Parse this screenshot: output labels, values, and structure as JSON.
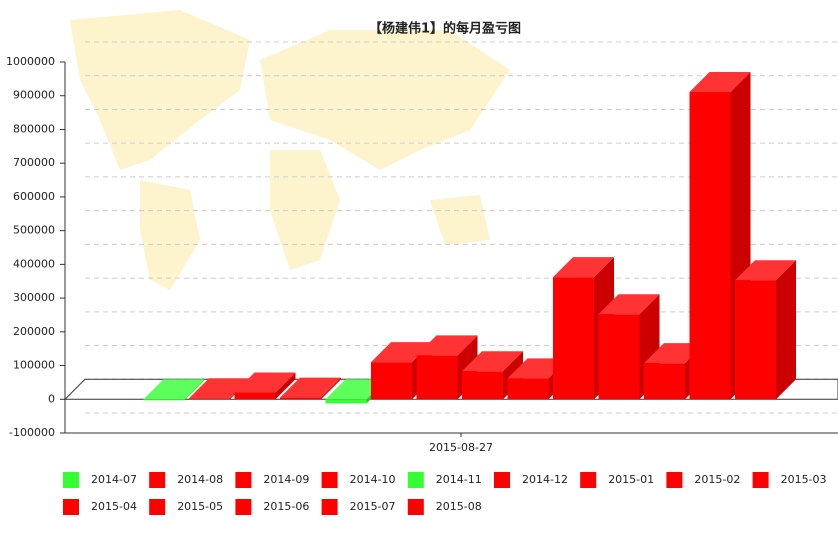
{
  "chart_data": {
    "type": "bar",
    "title": "【杨建伟1】的每月盈亏图",
    "categories": [
      "2015-08-27"
    ],
    "series": [
      {
        "name": "2014-07",
        "color": "#33ff33",
        "values": [
          -3000
        ]
      },
      {
        "name": "2014-08",
        "color": "#ff0000",
        "values": [
          3000
        ]
      },
      {
        "name": "2014-09",
        "color": "#ff0000",
        "values": [
          20000
        ]
      },
      {
        "name": "2014-10",
        "color": "#ff0000",
        "values": [
          5000
        ]
      },
      {
        "name": "2014-11",
        "color": "#33ff33",
        "values": [
          -12000
        ]
      },
      {
        "name": "2014-12",
        "color": "#ff0000",
        "values": [
          110000
        ]
      },
      {
        "name": "2015-01",
        "color": "#ff0000",
        "values": [
          130000
        ]
      },
      {
        "name": "2015-02",
        "color": "#ff0000",
        "values": [
          83000
        ]
      },
      {
        "name": "2015-03",
        "color": "#ff0000",
        "values": [
          62000
        ]
      },
      {
        "name": "2015-04",
        "color": "#ff0000",
        "values": [
          362000
        ]
      },
      {
        "name": "2015-05",
        "color": "#ff0000",
        "values": [
          252000
        ]
      },
      {
        "name": "2015-06",
        "color": "#ff0000",
        "values": [
          107000
        ]
      },
      {
        "name": "2015-07",
        "color": "#ff0000",
        "values": [
          911000
        ]
      },
      {
        "name": "2015-08",
        "color": "#ff0000",
        "values": [
          353000
        ]
      }
    ],
    "ylim": [
      -100000,
      1000000
    ],
    "yticks": [
      -100000,
      0,
      100000,
      200000,
      300000,
      400000,
      500000,
      600000,
      700000,
      800000,
      900000,
      1000000
    ],
    "grid": true
  }
}
